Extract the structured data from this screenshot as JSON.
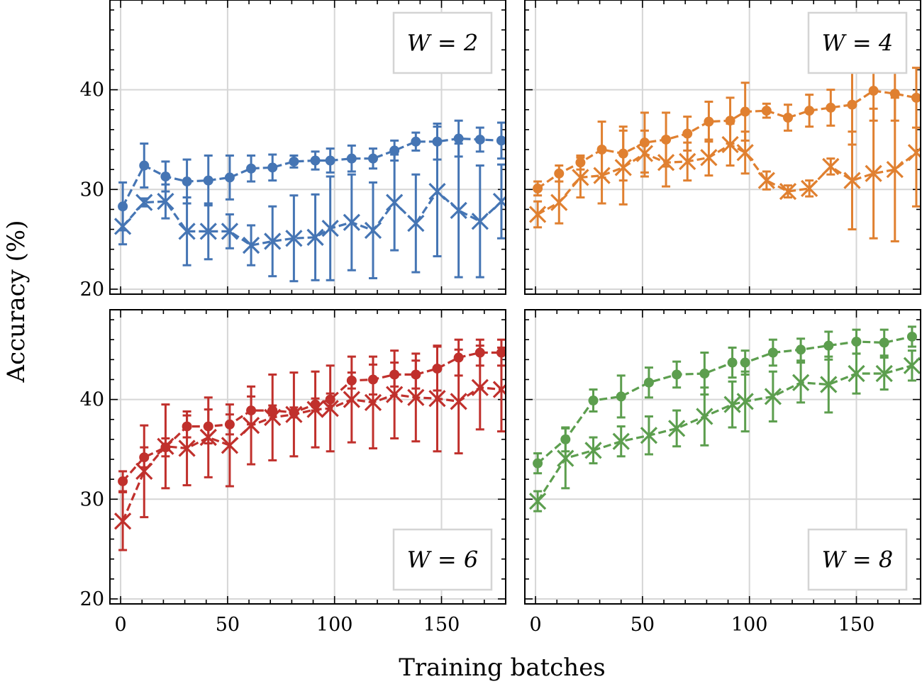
{
  "figure": {
    "xlabel": "Training batches",
    "ylabel": "Accuracy (%)",
    "x_ticks": [
      0,
      50,
      100,
      150
    ],
    "y_ticks": [
      20,
      30,
      40
    ],
    "grid": true,
    "sharex": true,
    "sharey": true
  },
  "chart_data": [
    {
      "type": "line",
      "label": "W = 2",
      "legend_position": "top-right",
      "color": "#4575b4",
      "xlim": [
        -5,
        180
      ],
      "ylim": [
        19.5,
        49
      ],
      "series": [
        {
          "name": "dot markers",
          "marker": "circle",
          "x": [
            1,
            11,
            21,
            31,
            41,
            51,
            61,
            71,
            81,
            91,
            98,
            108,
            118,
            128,
            138,
            148,
            158,
            168,
            178
          ],
          "values": [
            28.3,
            32.4,
            31.3,
            30.8,
            30.9,
            31.2,
            32.1,
            32.2,
            32.8,
            32.9,
            32.9,
            33.1,
            33.1,
            33.9,
            34.8,
            34.8,
            35.1,
            35.0,
            34.9
          ],
          "errors": [
            2.4,
            2.2,
            1.5,
            2.2,
            2.5,
            2.2,
            1.3,
            1.3,
            0.6,
            0.9,
            1.2,
            1.3,
            1.0,
            1.0,
            0.9,
            1.8,
            1.8,
            1.2,
            1.8
          ]
        },
        {
          "name": "cross markers",
          "marker": "x",
          "x": [
            1,
            11,
            21,
            31,
            41,
            51,
            61,
            71,
            81,
            91,
            98,
            108,
            118,
            128,
            138,
            148,
            158,
            168,
            178
          ],
          "values": [
            26.3,
            28.7,
            28.8,
            25.8,
            25.8,
            25.8,
            24.4,
            24.8,
            25.1,
            25.2,
            26.1,
            26.7,
            25.9,
            28.7,
            26.6,
            29.8,
            27.9,
            26.8,
            28.8
          ],
          "errors": [
            1.8,
            0.4,
            1.7,
            3.4,
            2.8,
            1.7,
            2.0,
            3.5,
            4.3,
            4.3,
            5.2,
            4.8,
            4.8,
            4.8,
            4.9,
            6.5,
            6.7,
            5.6,
            3.7
          ]
        }
      ]
    },
    {
      "type": "line",
      "label": "W = 4",
      "legend_position": "top-right",
      "color": "#e08030",
      "xlim": [
        -5,
        180
      ],
      "ylim": [
        19.5,
        49
      ],
      "series": [
        {
          "name": "dot markers",
          "marker": "circle",
          "x": [
            1,
            11,
            21,
            31,
            41,
            51,
            61,
            71,
            81,
            91,
            98,
            108,
            118,
            128,
            138,
            148,
            158,
            168,
            178
          ],
          "values": [
            30.1,
            31.6,
            32.7,
            34.0,
            33.6,
            34.7,
            35.0,
            35.6,
            36.8,
            36.9,
            37.8,
            37.9,
            37.2,
            37.9,
            38.2,
            38.5,
            39.9,
            39.6,
            39.2
          ],
          "errors": [
            0.7,
            0.8,
            0.7,
            2.8,
            2.7,
            3.0,
            2.7,
            1.7,
            2.0,
            2.3,
            2.9,
            0.7,
            1.3,
            1.6,
            1.8,
            4.0,
            3.0,
            2.7,
            3.0
          ]
        },
        {
          "name": "cross markers",
          "marker": "x",
          "x": [
            1,
            11,
            21,
            31,
            41,
            51,
            61,
            71,
            81,
            91,
            98,
            108,
            118,
            128,
            138,
            148,
            158,
            168,
            178
          ],
          "values": [
            27.5,
            28.7,
            31.2,
            31.4,
            32.2,
            33.6,
            32.7,
            32.8,
            33.2,
            34.5,
            33.7,
            30.9,
            29.8,
            30.1,
            32.3,
            30.9,
            31.6,
            32.0,
            33.7
          ],
          "errors": [
            1.3,
            2.1,
            2.0,
            2.8,
            3.7,
            2.3,
            2.4,
            1.9,
            1.8,
            2.1,
            2.1,
            0.9,
            0.6,
            0.8,
            0.8,
            4.9,
            6.5,
            7.2,
            5.4
          ]
        }
      ]
    },
    {
      "type": "line",
      "label": "W = 6",
      "legend_position": "bottom-right",
      "color": "#c0302c",
      "xlim": [
        -5,
        180
      ],
      "ylim": [
        19.5,
        49
      ],
      "series": [
        {
          "name": "dot markers",
          "marker": "circle",
          "x": [
            1,
            11,
            21,
            31,
            41,
            51,
            61,
            71,
            81,
            91,
            98,
            108,
            118,
            128,
            138,
            148,
            158,
            168,
            178
          ],
          "values": [
            31.8,
            34.2,
            35.2,
            37.3,
            37.3,
            37.5,
            38.9,
            38.9,
            38.7,
            39.5,
            40.0,
            41.9,
            42.0,
            42.5,
            42.5,
            43.1,
            44.2,
            44.7,
            44.7
          ],
          "errors": [
            1.0,
            1.0,
            0.9,
            1.1,
            1.7,
            1.0,
            1.4,
            0.5,
            0.5,
            0.6,
            0.6,
            0.8,
            1.5,
            1.2,
            1.4,
            2.2,
            1.8,
            1.3,
            1.3
          ]
        },
        {
          "name": "cross markers",
          "marker": "x",
          "x": [
            1,
            11,
            21,
            31,
            41,
            51,
            61,
            71,
            81,
            91,
            98,
            108,
            118,
            128,
            138,
            148,
            158,
            168,
            178
          ],
          "values": [
            27.8,
            32.8,
            35.3,
            35.1,
            36.2,
            35.4,
            37.4,
            38.2,
            38.5,
            39.0,
            39.1,
            40.0,
            39.7,
            40.5,
            40.2,
            40.1,
            39.8,
            41.2,
            41.0
          ],
          "errors": [
            2.9,
            4.6,
            4.2,
            3.7,
            4.0,
            4.1,
            3.9,
            4.3,
            4.2,
            3.8,
            4.3,
            4.3,
            4.6,
            4.4,
            4.4,
            5.3,
            5.2,
            4.2,
            4.2
          ]
        }
      ]
    },
    {
      "type": "line",
      "label": "W = 8",
      "legend_position": "bottom-right",
      "color": "#5c9e4e",
      "xlim": [
        -5,
        180
      ],
      "ylim": [
        19.5,
        49
      ],
      "series": [
        {
          "name": "dot markers",
          "marker": "circle",
          "x": [
            1,
            14,
            27,
            40,
            53,
            66,
            79,
            92,
            98,
            111,
            124,
            137,
            150,
            163,
            176
          ],
          "values": [
            33.6,
            36.0,
            39.9,
            40.3,
            41.7,
            42.5,
            42.6,
            43.7,
            43.7,
            44.7,
            45.0,
            45.4,
            45.8,
            45.7,
            46.3
          ],
          "errors": [
            1.0,
            1.2,
            1.1,
            2.1,
            1.5,
            1.3,
            2.1,
            1.5,
            1.2,
            1.3,
            1.1,
            1.4,
            1.2,
            1.3,
            1.0
          ]
        },
        {
          "name": "cross markers",
          "marker": "x",
          "x": [
            1,
            14,
            27,
            40,
            53,
            66,
            79,
            92,
            98,
            111,
            124,
            137,
            150,
            163,
            176
          ],
          "values": [
            29.8,
            34.1,
            34.9,
            35.8,
            36.4,
            37.1,
            38.3,
            39.5,
            39.8,
            40.3,
            41.7,
            41.5,
            42.6,
            42.6,
            43.4
          ],
          "errors": [
            1.0,
            3.0,
            1.3,
            1.5,
            1.9,
            1.8,
            2.9,
            2.3,
            3.0,
            2.5,
            2.0,
            2.8,
            2.0,
            1.6,
            1.5
          ]
        }
      ]
    }
  ]
}
